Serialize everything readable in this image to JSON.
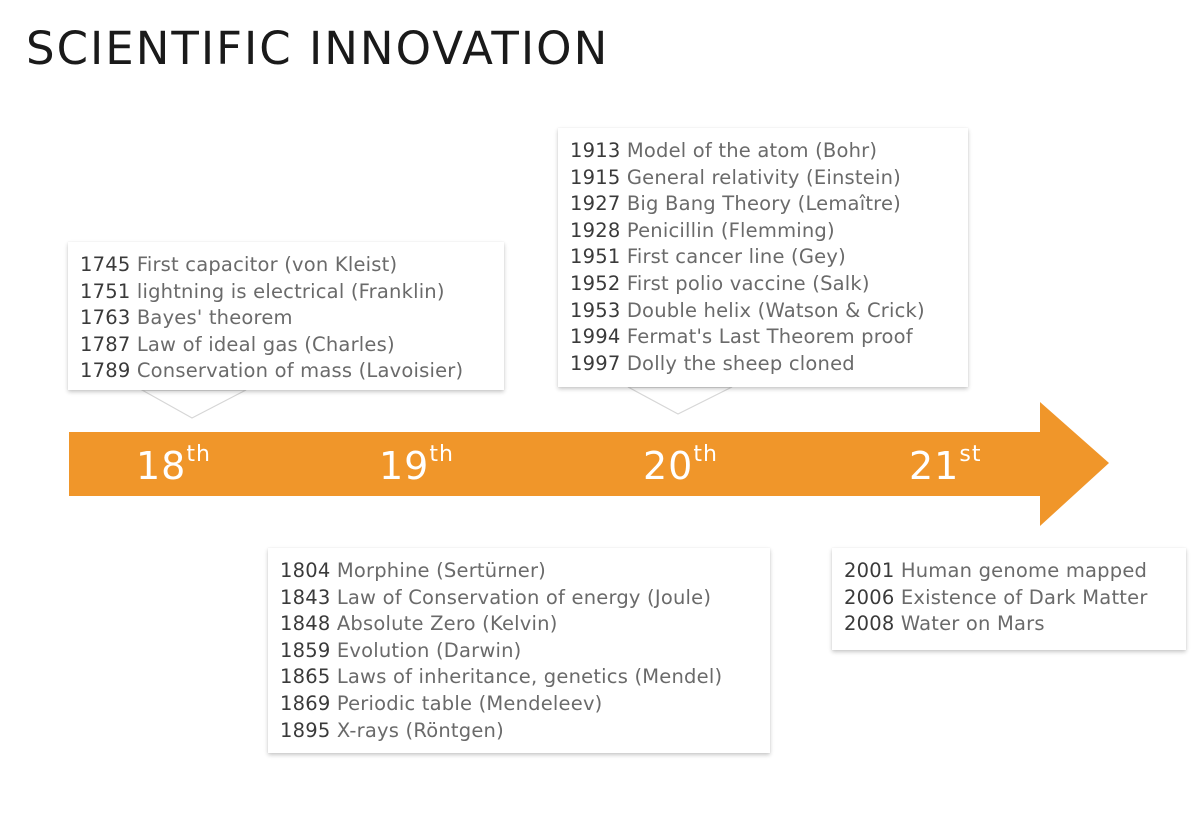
{
  "title": "SCIENTIFIC INNOVATION",
  "colors": {
    "arrow": "#f0962a",
    "box_text": "#6a6a6a",
    "year_text": "#3a3a3a"
  },
  "centuries": [
    {
      "num": "18",
      "suffix": "th"
    },
    {
      "num": "19",
      "suffix": "th"
    },
    {
      "num": "20",
      "suffix": "th"
    },
    {
      "num": "21",
      "suffix": "st"
    }
  ],
  "box18": [
    {
      "year": "1745",
      "event": "First capacitor (von Kleist)"
    },
    {
      "year": "1751",
      "event": "lightning is electrical (Franklin)"
    },
    {
      "year": "1763",
      "event": "Bayes' theorem"
    },
    {
      "year": "1787",
      "event": "Law of ideal gas (Charles)"
    },
    {
      "year": "1789",
      "event": "Conservation of mass (Lavoisier)"
    }
  ],
  "box19": [
    {
      "year": "1804",
      "event": "Morphine (Sertürner)"
    },
    {
      "year": "1843",
      "event": "Law of Conservation of energy (Joule)"
    },
    {
      "year": "1848",
      "event": "Absolute Zero (Kelvin)"
    },
    {
      "year": "1859",
      "event": "Evolution (Darwin)"
    },
    {
      "year": "1865",
      "event": "Laws of inheritance, genetics (Mendel)"
    },
    {
      "year": "1869",
      "event": "Periodic table (Mendeleev)"
    },
    {
      "year": "1895",
      "event": "X-rays (Röntgen)"
    }
  ],
  "box20": [
    {
      "year": "1913",
      "event": "Model of the atom (Bohr)"
    },
    {
      "year": "1915",
      "event": "General relativity (Einstein)"
    },
    {
      "year": "1927",
      "event": "Big Bang Theory (Lemaître)"
    },
    {
      "year": "1928",
      "event": "Penicillin (Flemming)"
    },
    {
      "year": "1951",
      "event": "First cancer line (Gey)"
    },
    {
      "year": "1952",
      "event": "First polio vaccine (Salk)"
    },
    {
      "year": "1953",
      "event": "Double helix (Watson & Crick)"
    },
    {
      "year": "1994",
      "event": "Fermat's Last Theorem proof"
    },
    {
      "year": "1997",
      "event": "Dolly the sheep cloned"
    }
  ],
  "box21": [
    {
      "year": "2001",
      "event": "Human genome mapped"
    },
    {
      "year": "2006",
      "event": "Existence of Dark Matter"
    },
    {
      "year": "2008",
      "event": "Water on Mars"
    }
  ]
}
